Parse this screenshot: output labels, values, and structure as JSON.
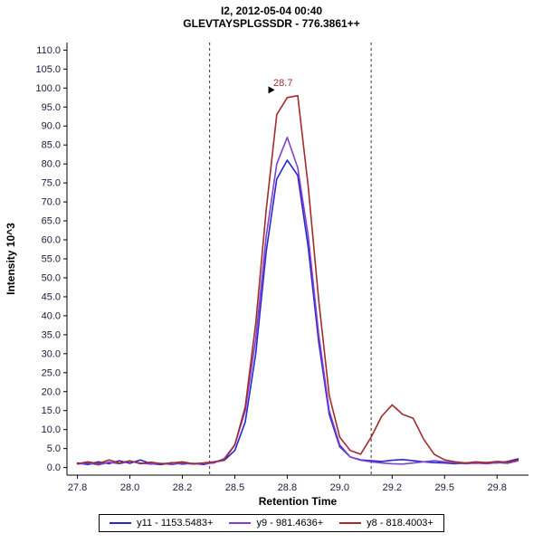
{
  "header": {
    "title_line1": "I2, 2012-05-04 00:40",
    "title_line2": "GLEVTAYSPLGSSDR - 776.3861++"
  },
  "colors": {
    "background": "#ffffff",
    "axis": "#000000",
    "tick_label": "#1a1a40",
    "boundary_line": "#333333",
    "annotation_text": "#a02c2c",
    "annotation_marker": "#000000"
  },
  "chart_data": {
    "type": "line",
    "title": "I2, 2012-05-04 00:40",
    "subtitle": "GLEVTAYSPLGSSDR - 776.3861++",
    "xlabel": "Retention Time",
    "ylabel": "Intensity 10^3",
    "xlim": [
      27.7,
      29.9
    ],
    "ylim": [
      -2,
      112
    ],
    "grid": false,
    "x_ticks": {
      "values": [
        27.75,
        28.0,
        28.25,
        28.5,
        28.75,
        29.0,
        29.25,
        29.5,
        29.75
      ],
      "labels": [
        "27.8",
        "28.0",
        "28.2",
        "28.5",
        "28.8",
        "29.0",
        "29.2",
        "29.5",
        "29.8"
      ]
    },
    "y_tick_labels": [
      "0.0",
      "5.0",
      "10.0",
      "15.0",
      "20.0",
      "25.0",
      "30.0",
      "35.0",
      "40.0",
      "45.0",
      "50.0",
      "55.0",
      "60.0",
      "65.0",
      "70.0",
      "75.0",
      "80.0",
      "85.0",
      "90.0",
      "95.0",
      "100.0",
      "105.0",
      "110.0"
    ],
    "boundaries": {
      "style": "dashed",
      "values": [
        28.38,
        29.15
      ]
    },
    "annotation": {
      "text": "28.7",
      "x": 28.73,
      "y": 100.5,
      "color": "#a02c2c",
      "marker": {
        "shape": "right-triangle",
        "x": 28.66,
        "y": 99.5,
        "color": "#000000"
      }
    },
    "x": [
      27.75,
      27.8,
      27.85,
      27.9,
      27.95,
      28.0,
      28.05,
      28.1,
      28.15,
      28.2,
      28.25,
      28.3,
      28.35,
      28.4,
      28.45,
      28.5,
      28.55,
      28.6,
      28.65,
      28.7,
      28.75,
      28.8,
      28.85,
      28.9,
      28.95,
      29.0,
      29.05,
      29.1,
      29.15,
      29.2,
      29.25,
      29.3,
      29.35,
      29.4,
      29.45,
      29.5,
      29.55,
      29.6,
      29.65,
      29.7,
      29.75,
      29.8,
      29.85
    ],
    "series": [
      {
        "name": "y11 - 1153.5483+",
        "color": "#2727cc",
        "values": [
          1.2,
          0.8,
          1.5,
          1.0,
          1.8,
          1.1,
          2.0,
          1.0,
          0.8,
          1.3,
          0.9,
          1.1,
          0.8,
          1.4,
          1.9,
          4.5,
          12.0,
          30.0,
          57.0,
          76.0,
          81.0,
          77.0,
          58.0,
          33.0,
          14.0,
          5.5,
          2.8,
          2.0,
          1.8,
          1.6,
          1.9,
          2.1,
          1.8,
          1.5,
          1.3,
          1.2,
          1.0,
          1.2,
          1.1,
          1.3,
          1.2,
          1.6,
          2.3
        ]
      },
      {
        "name": "y9 - 981.4636+",
        "color": "#8040d0",
        "values": [
          0.9,
          1.2,
          0.7,
          1.4,
          1.0,
          1.6,
          1.2,
          0.9,
          1.1,
          0.8,
          1.2,
          0.9,
          1.0,
          1.2,
          2.4,
          6.0,
          15.0,
          34.0,
          61.0,
          80.0,
          87.0,
          79.0,
          61.0,
          35.0,
          15.0,
          6.0,
          2.8,
          1.9,
          1.5,
          1.2,
          1.0,
          0.9,
          1.2,
          1.5,
          1.8,
          1.5,
          1.2,
          1.0,
          1.2,
          1.0,
          1.3,
          1.1,
          1.8
        ]
      },
      {
        "name": "y8 - 818.4003+",
        "color": "#a02c2c",
        "values": [
          1.0,
          1.5,
          1.0,
          2.0,
          1.2,
          1.8,
          1.0,
          1.4,
          1.0,
          1.2,
          1.5,
          1.0,
          1.2,
          1.5,
          2.0,
          6.0,
          16.0,
          38.0,
          68.0,
          93.0,
          97.5,
          98.0,
          74.0,
          44.0,
          19.0,
          8.0,
          4.5,
          3.5,
          8.0,
          13.5,
          16.5,
          14.0,
          13.0,
          7.5,
          3.5,
          2.0,
          1.5,
          1.2,
          1.5,
          1.3,
          1.6,
          1.4,
          2.0
        ]
      }
    ],
    "legend": {
      "position": "bottom",
      "entries": [
        "y11 - 1153.5483+",
        "y9 - 981.4636+",
        "y8 - 818.4003+"
      ]
    }
  }
}
